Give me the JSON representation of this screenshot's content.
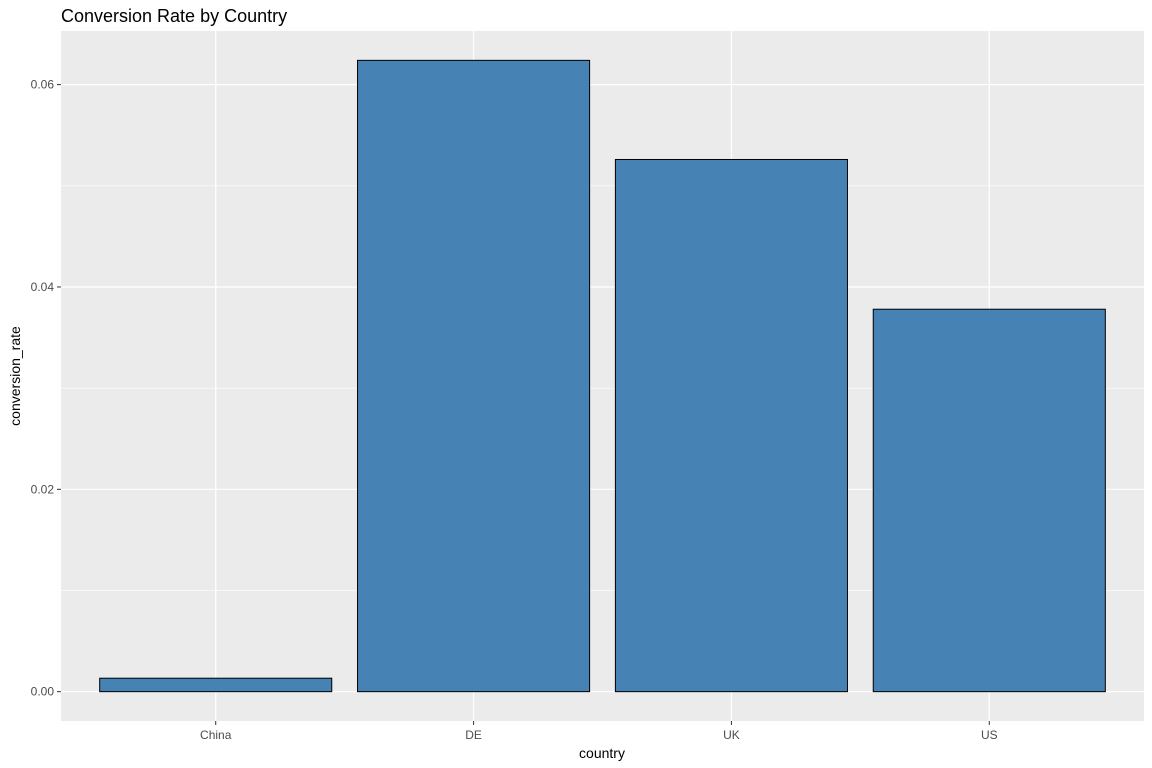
{
  "chart_data": {
    "type": "bar",
    "title": "Conversion Rate by Country",
    "xlabel": "country",
    "ylabel": "conversion_rate",
    "categories": [
      "China",
      "DE",
      "UK",
      "US"
    ],
    "values": [
      0.00133,
      0.0624,
      0.0526,
      0.0378
    ],
    "ylim": [
      -0.0029,
      0.0653
    ],
    "yticks": [
      0.0,
      0.02,
      0.04,
      0.06
    ],
    "ytick_labels": [
      "0.00",
      "0.02",
      "0.04",
      "0.06"
    ],
    "grid": true,
    "legend": "none",
    "colors": {
      "bar_fill": "#4682B4",
      "bar_outline": "#000000",
      "panel_background": "#EBEBEB",
      "gridline": "#FFFFFF"
    }
  }
}
